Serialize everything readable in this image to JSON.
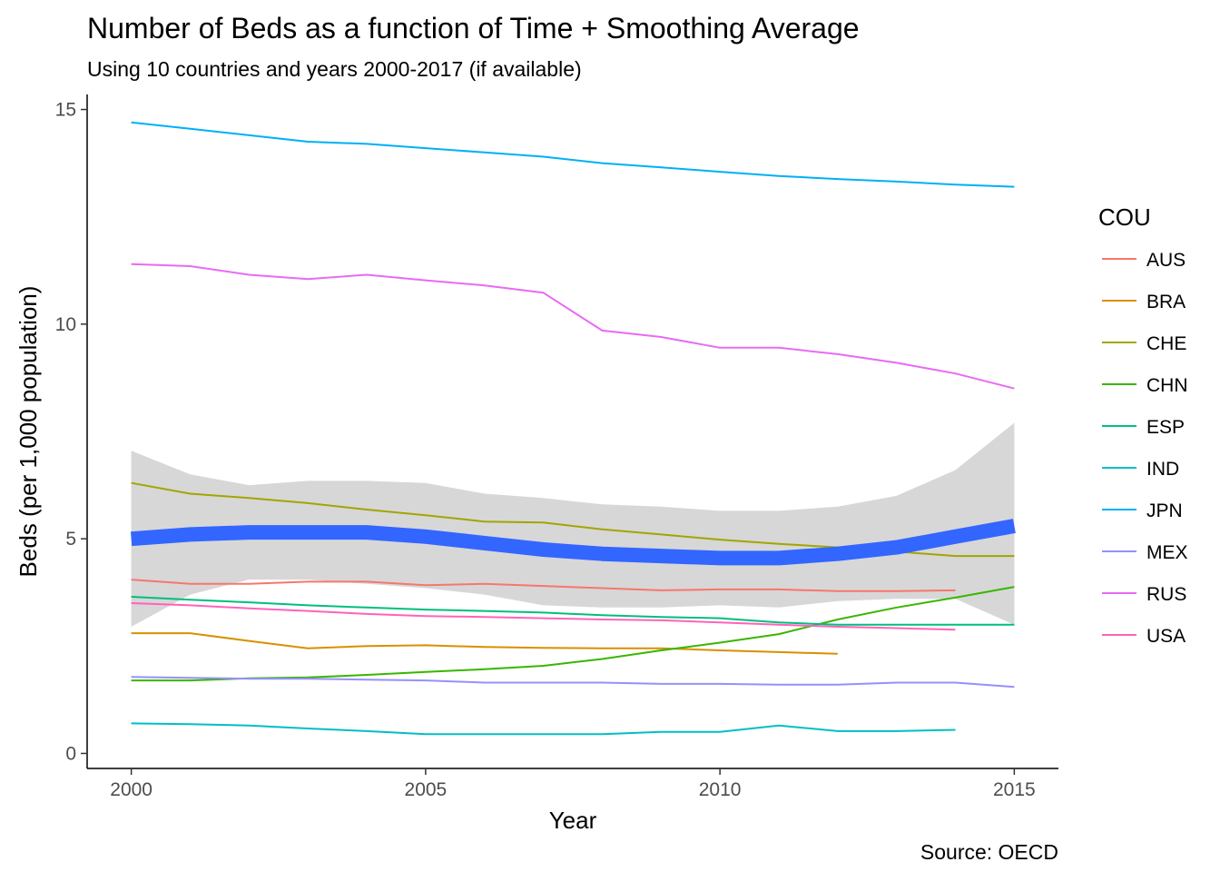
{
  "chart_data": {
    "type": "line",
    "title": "Number of Beds as a function of Time + Smoothing Average",
    "subtitle": "Using 10 countries and years 2000-2017 (if available)",
    "caption": "Source: OECD",
    "xlabel": "Year",
    "ylabel": "Beds (per 1,000 population)",
    "xlim": [
      1999.25,
      2015.75
    ],
    "ylim": [
      -0.35,
      15.35
    ],
    "x_ticks": [
      2000,
      2005,
      2010,
      2015
    ],
    "x_tick_labels": [
      "2000",
      "2005",
      "2010",
      "2015"
    ],
    "y_ticks": [
      0,
      5,
      10,
      15
    ],
    "y_tick_labels": [
      "0",
      "5",
      "10",
      "15"
    ],
    "grid": false,
    "legend": {
      "title": "COU",
      "placement": "right"
    },
    "series": [
      {
        "name": "AUS",
        "color": "#F8766D",
        "x": [
          2000,
          2001,
          2002,
          2003,
          2004,
          2005,
          2006,
          2007,
          2008,
          2009,
          2010,
          2011,
          2012,
          2013,
          2014
        ],
        "y": [
          4.05,
          3.95,
          3.95,
          4.0,
          4.0,
          3.92,
          3.95,
          3.9,
          3.85,
          3.8,
          3.82,
          3.82,
          3.78,
          3.78,
          3.8
        ]
      },
      {
        "name": "BRA",
        "color": "#D89000",
        "x": [
          2000,
          2001,
          2002,
          2003,
          2004,
          2005,
          2006,
          2007,
          2008,
          2009,
          2010,
          2011,
          2012
        ],
        "y": [
          2.8,
          2.8,
          2.62,
          2.45,
          2.5,
          2.52,
          2.48,
          2.46,
          2.45,
          2.45,
          2.4,
          2.36,
          2.32
        ]
      },
      {
        "name": "CHE",
        "color": "#A3A500",
        "x": [
          2000,
          2001,
          2002,
          2003,
          2004,
          2005,
          2006,
          2007,
          2008,
          2009,
          2010,
          2011,
          2012,
          2013,
          2014,
          2015
        ],
        "y": [
          6.3,
          6.05,
          5.95,
          5.83,
          5.68,
          5.55,
          5.4,
          5.38,
          5.22,
          5.1,
          4.98,
          4.88,
          4.8,
          4.7,
          4.6,
          4.6
        ]
      },
      {
        "name": "CHN",
        "color": "#39B600",
        "x": [
          2000,
          2001,
          2002,
          2003,
          2004,
          2005,
          2006,
          2007,
          2008,
          2009,
          2010,
          2011,
          2012,
          2013,
          2014,
          2015
        ],
        "y": [
          1.7,
          1.7,
          1.75,
          1.77,
          1.83,
          1.9,
          1.96,
          2.04,
          2.2,
          2.4,
          2.58,
          2.78,
          3.12,
          3.4,
          3.63,
          3.88
        ]
      },
      {
        "name": "ESP",
        "color": "#00BF7D",
        "x": [
          2000,
          2001,
          2002,
          2003,
          2004,
          2005,
          2006,
          2007,
          2008,
          2009,
          2010,
          2011,
          2012,
          2013,
          2014,
          2015
        ],
        "y": [
          3.65,
          3.58,
          3.52,
          3.45,
          3.4,
          3.35,
          3.32,
          3.28,
          3.22,
          3.18,
          3.15,
          3.05,
          3.0,
          3.0,
          3.0,
          3.0
        ]
      },
      {
        "name": "IND",
        "color": "#00BFC4",
        "x": [
          2000,
          2001,
          2002,
          2003,
          2004,
          2005,
          2006,
          2007,
          2008,
          2009,
          2010,
          2011,
          2012,
          2013,
          2014
        ],
        "y": [
          0.7,
          0.68,
          0.65,
          0.58,
          0.52,
          0.45,
          0.45,
          0.45,
          0.45,
          0.5,
          0.5,
          0.65,
          0.52,
          0.52,
          0.55
        ]
      },
      {
        "name": "JPN",
        "color": "#00B0F6",
        "x": [
          2000,
          2001,
          2002,
          2003,
          2004,
          2005,
          2006,
          2007,
          2008,
          2009,
          2010,
          2011,
          2012,
          2013,
          2014,
          2015
        ],
        "y": [
          14.7,
          14.55,
          14.4,
          14.25,
          14.2,
          14.1,
          14.0,
          13.9,
          13.75,
          13.65,
          13.55,
          13.45,
          13.38,
          13.32,
          13.25,
          13.2
        ]
      },
      {
        "name": "MEX",
        "color": "#9590FF",
        "x": [
          2000,
          2001,
          2002,
          2003,
          2004,
          2005,
          2006,
          2007,
          2008,
          2009,
          2010,
          2011,
          2012,
          2013,
          2014,
          2015
        ],
        "y": [
          1.78,
          1.76,
          1.74,
          1.74,
          1.72,
          1.7,
          1.65,
          1.65,
          1.65,
          1.62,
          1.62,
          1.6,
          1.6,
          1.65,
          1.65,
          1.55
        ]
      },
      {
        "name": "RUS",
        "color": "#E76BF3",
        "x": [
          2000,
          2001,
          2002,
          2003,
          2004,
          2005,
          2006,
          2007,
          2008,
          2009,
          2010,
          2011,
          2012,
          2013,
          2014,
          2015
        ],
        "y": [
          11.4,
          11.35,
          11.15,
          11.05,
          11.15,
          11.02,
          10.9,
          10.73,
          9.85,
          9.7,
          9.45,
          9.45,
          9.3,
          9.1,
          8.85,
          8.5
        ]
      },
      {
        "name": "USA",
        "color": "#FF62BC",
        "x": [
          2000,
          2001,
          2002,
          2003,
          2004,
          2005,
          2006,
          2007,
          2008,
          2009,
          2010,
          2011,
          2012,
          2013,
          2014
        ],
        "y": [
          3.5,
          3.45,
          3.38,
          3.32,
          3.25,
          3.2,
          3.18,
          3.15,
          3.12,
          3.1,
          3.05,
          3.0,
          2.95,
          2.92,
          2.88
        ]
      }
    ],
    "smooth": {
      "color": "#3366FF",
      "band_color": "#D3D3D3",
      "x": [
        2000,
        2001,
        2002,
        2003,
        2004,
        2005,
        2006,
        2007,
        2008,
        2009,
        2010,
        2011,
        2012,
        2013,
        2014,
        2015
      ],
      "y": [
        5.0,
        5.1,
        5.15,
        5.15,
        5.15,
        5.05,
        4.9,
        4.75,
        4.65,
        4.6,
        4.55,
        4.55,
        4.65,
        4.8,
        5.05,
        5.3
      ],
      "lower": [
        2.95,
        3.7,
        4.05,
        4.05,
        3.95,
        3.85,
        3.7,
        3.45,
        3.4,
        3.4,
        3.45,
        3.4,
        3.55,
        3.6,
        3.6,
        3.0
      ],
      "upper": [
        7.05,
        6.5,
        6.25,
        6.35,
        6.35,
        6.3,
        6.05,
        5.95,
        5.8,
        5.75,
        5.65,
        5.65,
        5.75,
        6.0,
        6.6,
        7.7
      ]
    }
  }
}
